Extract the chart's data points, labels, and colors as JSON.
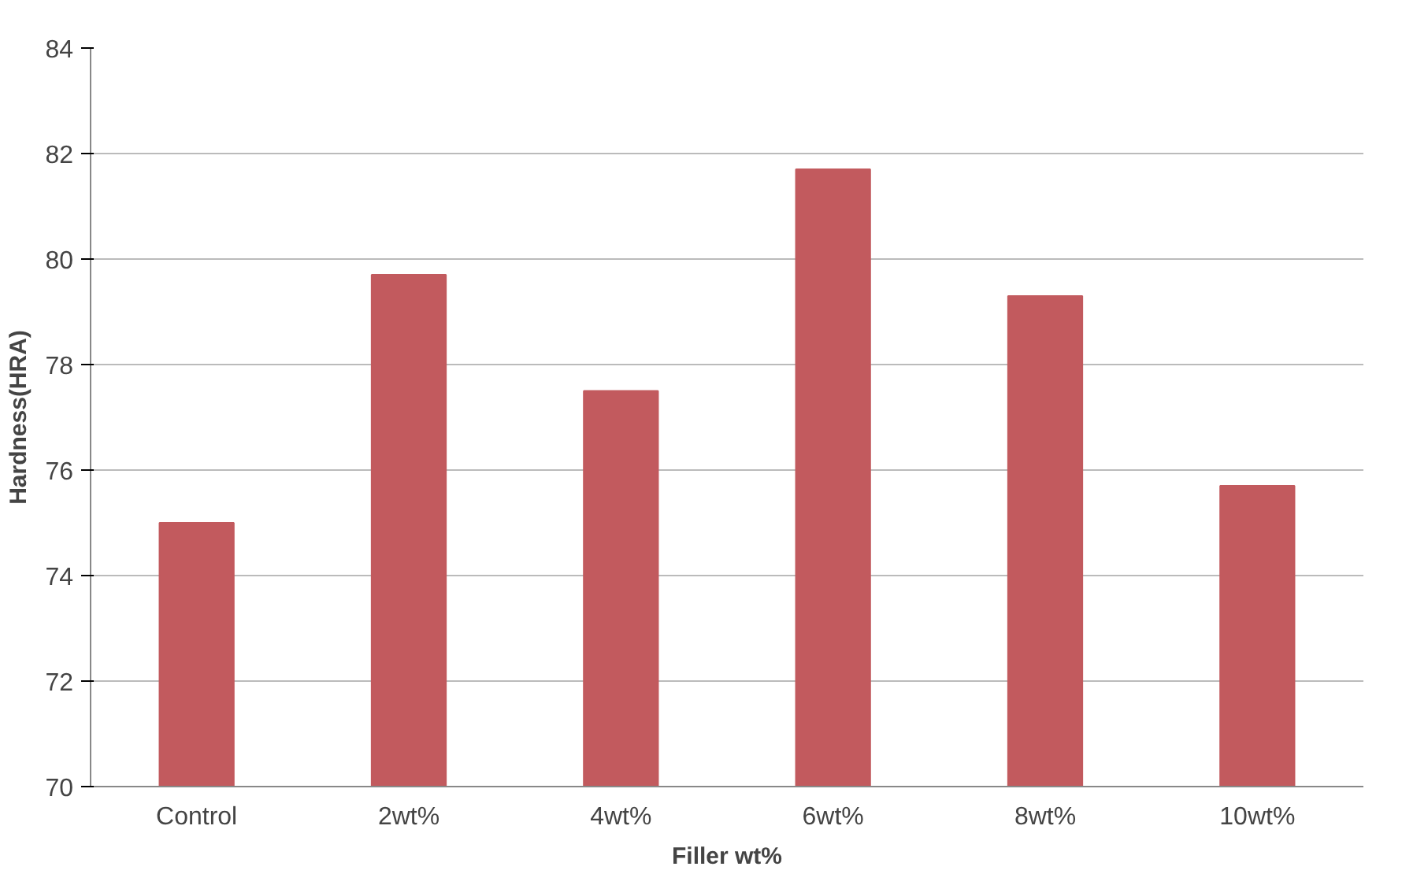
{
  "chart_data": {
    "type": "bar",
    "xlabel": "Filler wt%",
    "ylabel": "Hardness(HRA)",
    "categories": [
      "Control",
      "2wt%",
      "4wt%",
      "6wt%",
      "8wt%",
      "10wt%"
    ],
    "values": [
      75.0,
      79.7,
      77.5,
      81.7,
      79.3,
      75.7
    ],
    "color": "#c25a5e",
    "ylim": [
      70,
      84
    ],
    "yticks": [
      70,
      72,
      74,
      76,
      78,
      80,
      82,
      84
    ],
    "grid": "y"
  }
}
